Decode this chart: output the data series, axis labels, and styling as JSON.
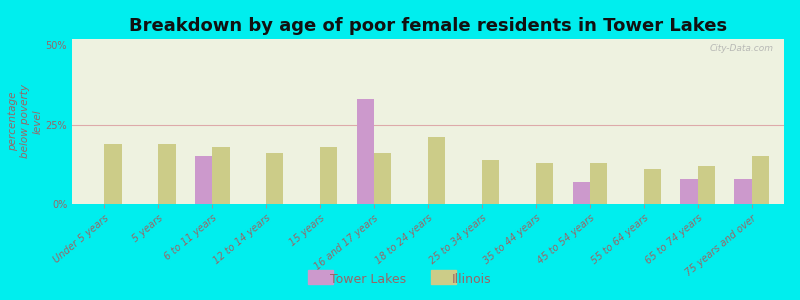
{
  "title": "Breakdown by age of poor female residents in Tower Lakes",
  "categories": [
    "Under 5 years",
    "5 years",
    "6 to 11 years",
    "12 to 14 years",
    "15 years",
    "16 and 17 years",
    "18 to 24 years",
    "25 to 34 years",
    "35 to 44 years",
    "45 to 54 years",
    "55 to 64 years",
    "65 to 74 years",
    "75 years and over"
  ],
  "tower_lakes": [
    0,
    0,
    15.0,
    0,
    0,
    33.0,
    0,
    0,
    0,
    7.0,
    0,
    8.0,
    8.0
  ],
  "illinois": [
    19.0,
    19.0,
    18.0,
    16.0,
    18.0,
    16.0,
    21.0,
    14.0,
    13.0,
    13.0,
    11.0,
    12.0,
    15.0
  ],
  "tower_lakes_color": "#cc99cc",
  "illinois_color": "#cccc88",
  "background_color": "#00eeee",
  "plot_bg_color": "#eef2e0",
  "ylabel": "percentage\nbelow poverty\nlevel",
  "ylim": [
    0,
    52
  ],
  "yticks": [
    0,
    25,
    50
  ],
  "ytick_labels": [
    "0%",
    "25%",
    "50%"
  ],
  "title_fontsize": 13,
  "axis_label_fontsize": 7.5,
  "tick_fontsize": 7,
  "legend_labels": [
    "Tower Lakes",
    "Illinois"
  ],
  "bar_width": 0.32,
  "watermark": "City-Data.com",
  "grid_color": "#ddaaaa",
  "tick_color": "#996666",
  "label_color": "#996666"
}
